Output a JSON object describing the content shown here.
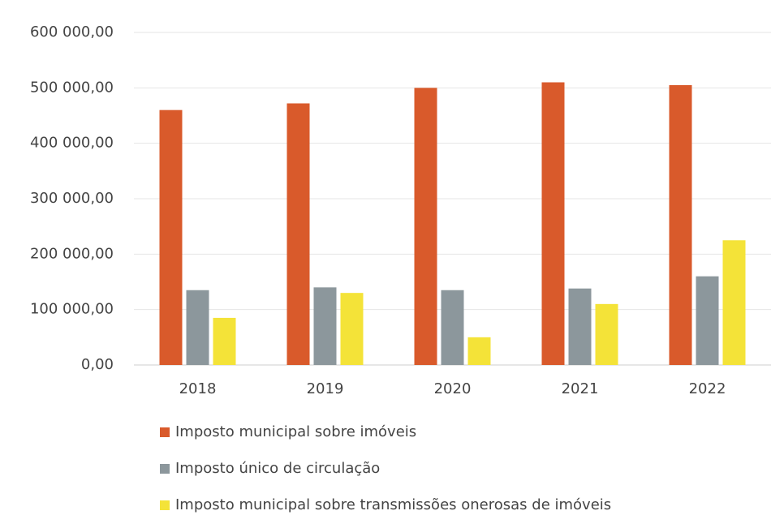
{
  "chart_data": {
    "type": "bar",
    "categories": [
      "2018",
      "2019",
      "2020",
      "2021",
      "2022"
    ],
    "series": [
      {
        "name": "Imposto municipal sobre imóveis",
        "color": "#d95a2b",
        "values": [
          460000,
          472000,
          500000,
          510000,
          505000
        ]
      },
      {
        "name": "Imposto único de circulação",
        "color": "#8c979c",
        "values": [
          135000,
          140000,
          135000,
          138000,
          160000
        ]
      },
      {
        "name": "Imposto municipal sobre transmissões onerosas de imóveis",
        "color": "#f4e338",
        "values": [
          85000,
          130000,
          50000,
          110000,
          225000
        ]
      }
    ],
    "ylim": [
      0,
      600000
    ],
    "yticks": [
      {
        "value": 0,
        "label": "0,00"
      },
      {
        "value": 100000,
        "label": "100 000,00"
      },
      {
        "value": 200000,
        "label": "200 000,00"
      },
      {
        "value": 300000,
        "label": "300 000,00"
      },
      {
        "value": 400000,
        "label": "400 000,00"
      },
      {
        "value": 500000,
        "label": "500 000,00"
      },
      {
        "value": 600000,
        "label": "600 000,00"
      }
    ],
    "grid": true,
    "legend": "bottom"
  }
}
